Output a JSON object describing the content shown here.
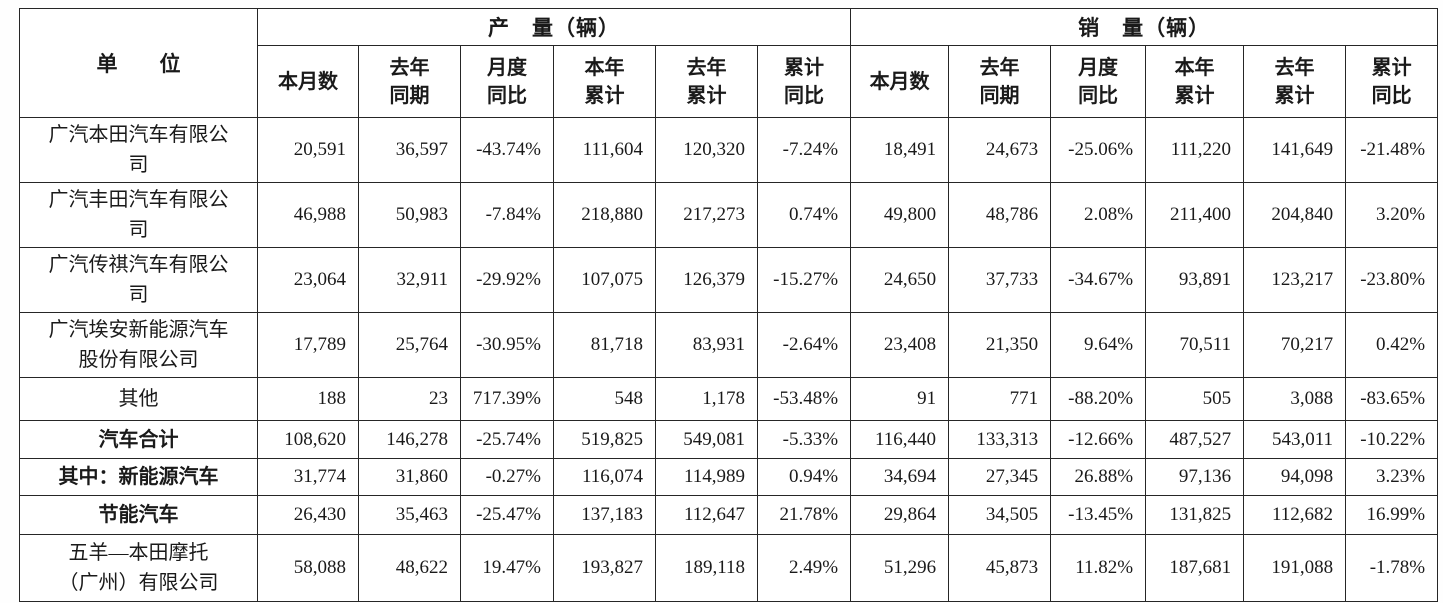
{
  "table": {
    "unit_header": "单　　位",
    "production_header": "产　量（辆）",
    "sales_header": "销　量（辆）",
    "sub_headers": [
      "本月数",
      "去年\n同期",
      "月度\n同比",
      "本年\n累计",
      "去年\n累计",
      "累计\n同比"
    ],
    "rows": [
      {
        "label": "广汽本田汽车有限公司",
        "bold": false,
        "production": [
          "20,591",
          "36,597",
          "-43.74%",
          "111,604",
          "120,320",
          "-7.24%"
        ],
        "sales": [
          "18,491",
          "24,673",
          "-25.06%",
          "111,220",
          "141,649",
          "-21.48%"
        ]
      },
      {
        "label": "广汽丰田汽车有限公司",
        "bold": false,
        "production": [
          "46,988",
          "50,983",
          "-7.84%",
          "218,880",
          "217,273",
          "0.74%"
        ],
        "sales": [
          "49,800",
          "48,786",
          "2.08%",
          "211,400",
          "204,840",
          "3.20%"
        ]
      },
      {
        "label": "广汽传祺汽车有限公司",
        "bold": false,
        "production": [
          "23,064",
          "32,911",
          "-29.92%",
          "107,075",
          "126,379",
          "-15.27%"
        ],
        "sales": [
          "24,650",
          "37,733",
          "-34.67%",
          "93,891",
          "123,217",
          "-23.80%"
        ]
      },
      {
        "label": "广汽埃安新能源汽车股份有限公司",
        "bold": false,
        "production": [
          "17,789",
          "25,764",
          "-30.95%",
          "81,718",
          "83,931",
          "-2.64%"
        ],
        "sales": [
          "23,408",
          "21,350",
          "9.64%",
          "70,511",
          "70,217",
          "0.42%"
        ]
      },
      {
        "label": "其他",
        "bold": false,
        "production": [
          "188",
          "23",
          "717.39%",
          "548",
          "1,178",
          "-53.48%"
        ],
        "sales": [
          "91",
          "771",
          "-88.20%",
          "505",
          "3,088",
          "-83.65%"
        ]
      },
      {
        "label": "汽车合计",
        "bold": true,
        "production": [
          "108,620",
          "146,278",
          "-25.74%",
          "519,825",
          "549,081",
          "-5.33%"
        ],
        "sales": [
          "116,440",
          "133,313",
          "-12.66%",
          "487,527",
          "543,011",
          "-10.22%"
        ]
      },
      {
        "label": "其中：新能源汽车",
        "bold": true,
        "production": [
          "31,774",
          "31,860",
          "-0.27%",
          "116,074",
          "114,989",
          "0.94%"
        ],
        "sales": [
          "34,694",
          "27,345",
          "26.88%",
          "97,136",
          "94,098",
          "3.23%"
        ]
      },
      {
        "label": "节能汽车",
        "bold": true,
        "production": [
          "26,430",
          "35,463",
          "-25.47%",
          "137,183",
          "112,647",
          "21.78%"
        ],
        "sales": [
          "29,864",
          "34,505",
          "-13.45%",
          "131,825",
          "112,682",
          "16.99%"
        ]
      },
      {
        "label": "五羊—本田摩托\n（广州）有限公司",
        "bold": false,
        "production": [
          "58,088",
          "48,622",
          "19.47%",
          "193,827",
          "189,118",
          "2.49%"
        ],
        "sales": [
          "51,296",
          "45,873",
          "11.82%",
          "187,681",
          "191,088",
          "-1.78%"
        ]
      }
    ]
  }
}
